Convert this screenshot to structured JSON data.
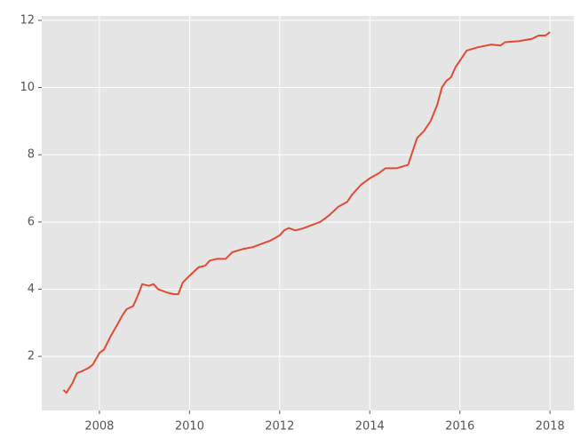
{
  "chart_data": {
    "type": "line",
    "color": "#e24a33",
    "grid": true,
    "x": [
      2007.2,
      2007.27,
      2007.4,
      2007.5,
      2007.6,
      2007.75,
      2007.85,
      2008.0,
      2008.1,
      2008.25,
      2008.4,
      2008.5,
      2008.6,
      2008.75,
      2008.85,
      2008.95,
      2009.1,
      2009.2,
      2009.3,
      2009.5,
      2009.65,
      2009.75,
      2009.85,
      2010.0,
      2010.2,
      2010.35,
      2010.45,
      2010.6,
      2010.8,
      2010.95,
      2011.2,
      2011.4,
      2011.6,
      2011.8,
      2012.0,
      2012.1,
      2012.2,
      2012.35,
      2012.5,
      2012.7,
      2012.9,
      2013.1,
      2013.3,
      2013.5,
      2013.6,
      2013.8,
      2014.0,
      2014.2,
      2014.35,
      2014.6,
      2014.85,
      2014.95,
      2015.05,
      2015.2,
      2015.35,
      2015.5,
      2015.6,
      2015.7,
      2015.8,
      2015.9,
      2016.0,
      2016.15,
      2016.4,
      2016.7,
      2016.9,
      2017.0,
      2017.3,
      2017.6,
      2017.75,
      2017.9,
      2018.0
    ],
    "values": [
      1.0,
      0.92,
      1.2,
      1.5,
      1.55,
      1.65,
      1.75,
      2.1,
      2.2,
      2.6,
      2.95,
      3.2,
      3.4,
      3.5,
      3.8,
      4.15,
      4.1,
      4.15,
      4.0,
      3.9,
      3.85,
      3.85,
      4.2,
      4.4,
      4.65,
      4.7,
      4.85,
      4.9,
      4.9,
      5.1,
      5.2,
      5.25,
      5.35,
      5.45,
      5.6,
      5.75,
      5.82,
      5.75,
      5.8,
      5.9,
      6.0,
      6.2,
      6.45,
      6.6,
      6.8,
      7.1,
      7.3,
      7.45,
      7.6,
      7.6,
      7.7,
      8.1,
      8.5,
      8.7,
      9.0,
      9.5,
      10.0,
      10.2,
      10.3,
      10.6,
      10.8,
      11.1,
      11.2,
      11.28,
      11.25,
      11.35,
      11.38,
      11.45,
      11.55,
      11.55,
      11.65
    ],
    "xlim": [
      2006.72,
      2018.53
    ],
    "xticks": [
      2008,
      2010,
      2012,
      2014,
      2016,
      2018
    ],
    "ylim": [
      0.39,
      12.13
    ],
    "yticks": [
      2,
      4,
      6,
      8,
      10,
      12
    ]
  }
}
